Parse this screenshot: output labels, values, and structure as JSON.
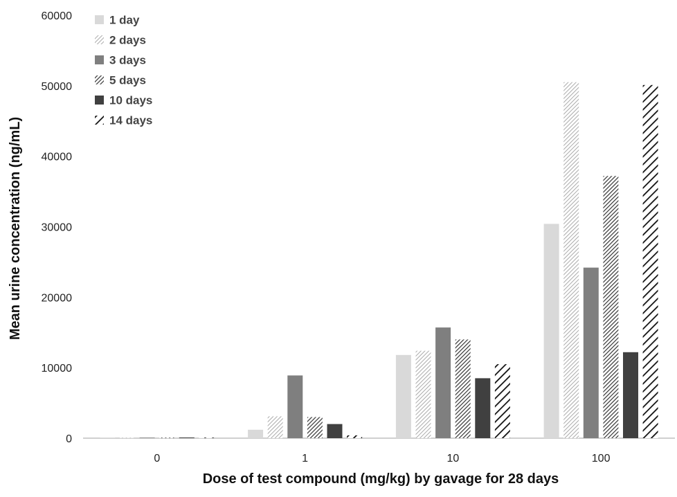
{
  "chart_data": {
    "type": "bar",
    "title": "",
    "xlabel": "Dose of test compound (mg/kg) by gavage for 28 days",
    "ylabel": "Mean urine concentration (ng/mL)",
    "categories": [
      "0",
      "1",
      "10",
      "100"
    ],
    "ylim": [
      0,
      60000
    ],
    "yticks": [
      "0",
      "10000",
      "20000",
      "30000",
      "40000",
      "50000",
      "60000"
    ],
    "grid": false,
    "legend_position": "top-left",
    "series": [
      {
        "name": "1 day",
        "values": [
          50,
          1200,
          11800,
          30400
        ],
        "color": "#d9d9d9",
        "pattern": "solid"
      },
      {
        "name": "2 days",
        "values": [
          50,
          3100,
          12400,
          50500
        ],
        "color": "#bfbfbf",
        "pattern": "fine-diagonal"
      },
      {
        "name": "3 days",
        "values": [
          80,
          8900,
          15700,
          24200
        ],
        "color": "#7f7f7f",
        "pattern": "solid"
      },
      {
        "name": "5 days",
        "values": [
          80,
          3000,
          14000,
          37200
        ],
        "color": "#404040",
        "pattern": "dense-diagonal"
      },
      {
        "name": "10 days",
        "values": [
          100,
          2000,
          8500,
          12200
        ],
        "color": "#404040",
        "pattern": "solid"
      },
      {
        "name": "14 days",
        "values": [
          80,
          400,
          10500,
          50100
        ],
        "color": "#000000",
        "pattern": "wide-diagonal"
      }
    ]
  }
}
